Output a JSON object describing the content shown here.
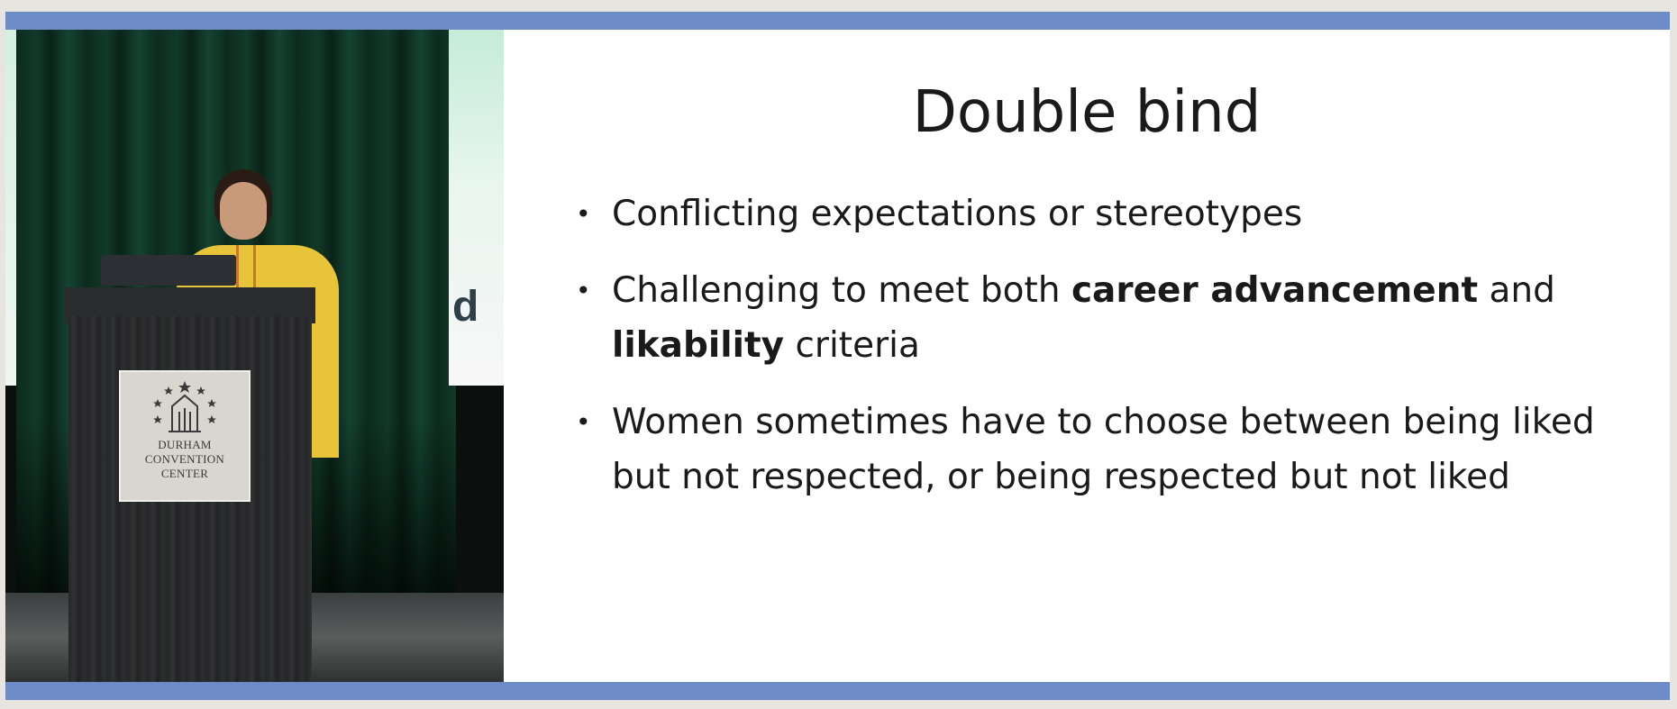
{
  "window": {
    "accent_color": "#6d8cc7",
    "background_color": "#e8e5e1"
  },
  "video": {
    "podium_sign": {
      "line1": "DURHAM",
      "line2": "CONVENTION",
      "line3": "CENTER"
    },
    "banner_letter": "d"
  },
  "slide": {
    "title": "Double bind",
    "bullets": [
      {
        "text": "Conflicting expectations or stereotypes"
      },
      {
        "part1": "Challenging to meet both ",
        "bold1": "career advancement",
        "part2": " and ",
        "bold2": "likability",
        "part3": " criteria"
      },
      {
        "text": "Women sometimes have to choose between being liked but not respected, or being respected but not liked"
      }
    ],
    "bullet_symbol": "•"
  }
}
